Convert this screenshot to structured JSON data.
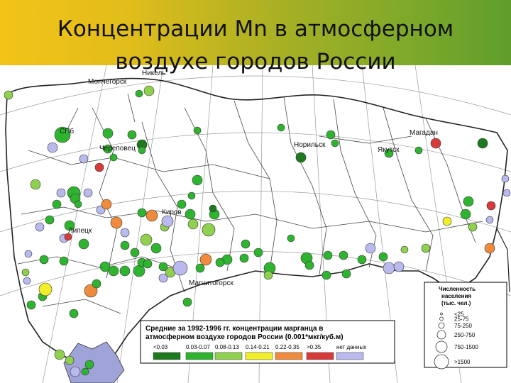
{
  "title": {
    "line1": "Концентрации Mn в атмосферном",
    "line2": "воздухе городов России"
  },
  "cities": [
    "Мончегорск",
    "Никель",
    "СПб",
    "Череповец",
    "Липецк",
    "Киров",
    "Магнитогорск",
    "Норильск",
    "Якутск",
    "Магадан"
  ],
  "legend": {
    "title_line1": "Средние за 1992-1996 гг. концентрации марганца в",
    "title_line2": "атмосферном воздухе городов России (0.001*мкг/куб.м)",
    "classes": [
      {
        "label": "<0.03",
        "color": "#1e7a1e"
      },
      {
        "label": "0.03-0.07",
        "color": "#2fb42f"
      },
      {
        "label": "0.08-0.13",
        "color": "#8fd14f"
      },
      {
        "label": "0.14-0.21",
        "color": "#f2ef2a"
      },
      {
        "label": "0.22-0.35",
        "color": "#f08a3c"
      },
      {
        "label": ">0.35",
        "color": "#d83a3a"
      },
      {
        "label": "нет данных",
        "color": "#b9b9ee"
      }
    ]
  },
  "population_legend": {
    "title_line1": "Численность",
    "title_line2": "населения",
    "title_line3": "(тыс. чел.)",
    "classes": [
      "<25",
      "25-75",
      "75-250",
      "250-750",
      "750-1500",
      ">1500"
    ]
  }
}
